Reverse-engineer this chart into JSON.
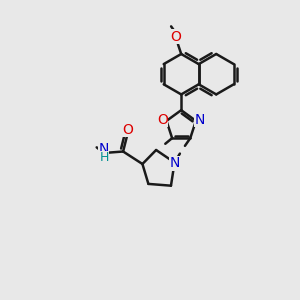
{
  "bg_color": "#e8e8e8",
  "line_color": "#1a1a1a",
  "bond_width": 1.8,
  "atom_colors": {
    "O": "#dd0000",
    "N": "#0000cc",
    "C": "#1a1a1a",
    "H": "#009090"
  },
  "bl": 0.68
}
